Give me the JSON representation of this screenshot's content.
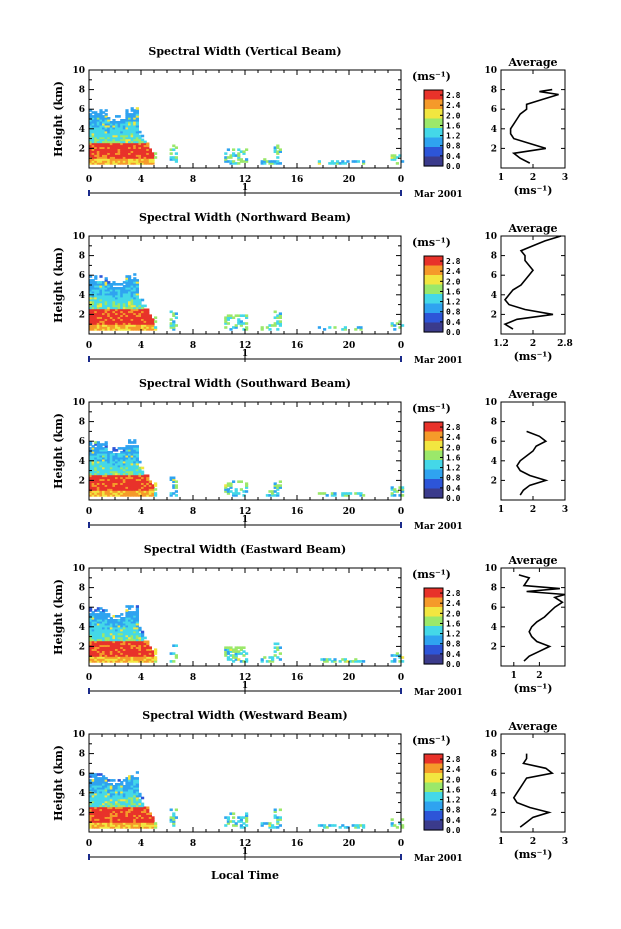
{
  "figure": {
    "xlabel": "Local Time",
    "date_label": "Mar 2001",
    "day_label": "1",
    "colorbar_unit": "(ms⁻¹)",
    "colorbar_ticks": [
      "2.8",
      "2.4",
      "2.0",
      "1.6",
      "1.2",
      "0.8",
      "0.4",
      "0.0"
    ],
    "colors": {
      "c0": "#3b3b8c",
      "c1": "#2d55d8",
      "c2": "#2fa3f0",
      "c3": "#44d8e8",
      "c4": "#9be86a",
      "c5": "#f2e640",
      "c6": "#f59a2a",
      "c7": "#e8322a"
    }
  },
  "chart_data": [
    {
      "type": "heatmap",
      "title": "Spectral Width (Vertical Beam)",
      "ylabel": "Height (km)",
      "xlim": [
        0,
        24
      ],
      "ylim": [
        0,
        10
      ],
      "xticks": [
        "0",
        "4",
        "8",
        "12",
        "16",
        "20",
        "0"
      ],
      "yticks": [
        "2",
        "4",
        "6",
        "8",
        "10"
      ],
      "colorbar_range": [
        0.0,
        3.0
      ],
      "average": {
        "title": "Average",
        "xlabel": "(ms⁻¹)",
        "xticks": [
          "1",
          "2",
          "3"
        ],
        "xlim": [
          1,
          3
        ],
        "yticks": [
          "2",
          "4",
          "6",
          "8",
          "10"
        ],
        "heights": [
          0.5,
          1.0,
          1.5,
          2.0,
          2.5,
          3.0,
          3.5,
          4.0,
          4.5,
          5.0,
          5.5,
          6.0,
          6.5,
          7.0,
          7.5,
          7.8,
          8.0
        ],
        "values": [
          1.9,
          1.6,
          1.4,
          2.4,
          1.9,
          1.4,
          1.3,
          1.3,
          1.4,
          1.5,
          1.6,
          1.8,
          1.8,
          2.3,
          2.8,
          2.2,
          2.6
        ]
      }
    },
    {
      "type": "heatmap",
      "title": "Spectral Width (Northward Beam)",
      "ylabel": "Height (km)",
      "xlim": [
        0,
        24
      ],
      "ylim": [
        0,
        10
      ],
      "xticks": [
        "0",
        "4",
        "8",
        "12",
        "16",
        "20",
        "0"
      ],
      "yticks": [
        "2",
        "4",
        "6",
        "8",
        "10"
      ],
      "colorbar_range": [
        0.0,
        3.0
      ],
      "average": {
        "title": "Average",
        "xlabel": "(ms⁻¹)",
        "xticks": [
          "1.2",
          "2",
          "2.8"
        ],
        "xlim": [
          1.2,
          2.8
        ],
        "yticks": [
          "2",
          "4",
          "6",
          "8",
          "10"
        ],
        "heights": [
          0.5,
          1.0,
          1.5,
          2.0,
          2.5,
          3.0,
          3.5,
          4.0,
          4.5,
          5.0,
          5.5,
          6.0,
          6.5,
          7.0,
          7.5,
          8.0,
          8.5,
          9.0,
          9.5,
          10.0
        ],
        "values": [
          1.5,
          1.3,
          1.6,
          2.5,
          1.8,
          1.4,
          1.3,
          1.4,
          1.5,
          1.7,
          1.8,
          1.9,
          2.0,
          1.9,
          1.8,
          1.8,
          1.7,
          2.0,
          2.3,
          2.7
        ]
      }
    },
    {
      "type": "heatmap",
      "title": "Spectral Width (Southward Beam)",
      "ylabel": "Height (km)",
      "xlim": [
        0,
        24
      ],
      "ylim": [
        0,
        10
      ],
      "xticks": [
        "0",
        "4",
        "8",
        "12",
        "16",
        "20",
        "0"
      ],
      "yticks": [
        "2",
        "4",
        "6",
        "8",
        "10"
      ],
      "colorbar_range": [
        0.0,
        3.0
      ],
      "average": {
        "title": "Average",
        "xlabel": "",
        "xticks": [
          "1",
          "2",
          "3"
        ],
        "xlim": [
          1,
          3
        ],
        "yticks": [
          "2",
          "4",
          "6",
          "8",
          "10"
        ],
        "heights": [
          0.5,
          1.0,
          1.5,
          2.0,
          2.5,
          3.0,
          3.5,
          4.0,
          4.5,
          5.0,
          5.5,
          6.0,
          6.5,
          7.0
        ],
        "values": [
          1.6,
          1.7,
          1.9,
          2.4,
          1.9,
          1.6,
          1.5,
          1.6,
          1.8,
          2.0,
          2.1,
          2.4,
          2.2,
          1.8
        ]
      }
    },
    {
      "type": "heatmap",
      "title": "Spectral Width (Eastward Beam)",
      "ylabel": "Height (km)",
      "xlim": [
        0,
        24
      ],
      "ylim": [
        0,
        10
      ],
      "xticks": [
        "0",
        "4",
        "8",
        "12",
        "16",
        "20",
        "0"
      ],
      "yticks": [
        "2",
        "4",
        "6",
        "8",
        "10"
      ],
      "colorbar_range": [
        0.0,
        3.0
      ],
      "average": {
        "title": "Average",
        "xlabel": "(ms⁻¹)",
        "xticks": [
          "1",
          "2"
        ],
        "xlim": [
          0.5,
          3.0
        ],
        "yticks": [
          "2",
          "4",
          "6",
          "8",
          "10"
        ],
        "heights": [
          0.5,
          1.0,
          1.5,
          2.0,
          2.5,
          3.0,
          3.5,
          4.0,
          4.5,
          5.0,
          5.5,
          6.0,
          6.5,
          7.0,
          7.3,
          7.6,
          7.9,
          8.2,
          9.0,
          9.3
        ],
        "values": [
          1.4,
          1.6,
          2.0,
          2.4,
          1.9,
          1.7,
          1.6,
          1.7,
          1.9,
          2.2,
          2.4,
          2.6,
          2.9,
          2.6,
          3.0,
          1.5,
          2.8,
          1.4,
          1.6,
          1.2
        ]
      }
    },
    {
      "type": "heatmap",
      "title": "Spectral Width (Westward Beam)",
      "ylabel": "Height (km)",
      "xlim": [
        0,
        24
      ],
      "ylim": [
        0,
        10
      ],
      "xticks": [
        "0",
        "4",
        "8",
        "12",
        "16",
        "20",
        "0"
      ],
      "yticks": [
        "2",
        "4",
        "6",
        "8",
        "10"
      ],
      "colorbar_range": [
        0.0,
        3.0
      ],
      "average": {
        "title": "Average",
        "xlabel": "(ms⁻¹)",
        "xticks": [
          "1",
          "2",
          "3"
        ],
        "xlim": [
          1,
          3
        ],
        "yticks": [
          "2",
          "4",
          "6",
          "8",
          "10"
        ],
        "heights": [
          0.5,
          1.0,
          1.5,
          2.0,
          2.5,
          3.0,
          3.5,
          4.0,
          4.5,
          5.0,
          5.5,
          6.0,
          6.5,
          7.0,
          7.5,
          8.0
        ],
        "values": [
          1.6,
          1.8,
          2.0,
          2.5,
          1.9,
          1.5,
          1.4,
          1.5,
          1.6,
          1.7,
          1.8,
          2.6,
          2.4,
          1.7,
          1.8,
          1.8
        ]
      }
    }
  ]
}
